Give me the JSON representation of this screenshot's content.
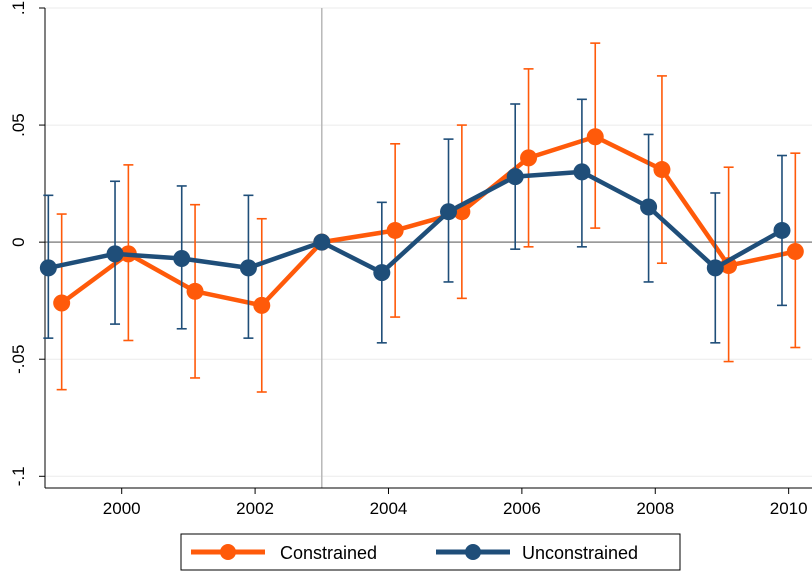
{
  "chart_data": {
    "type": "line",
    "title": "",
    "xlabel": "",
    "ylabel": "",
    "xlim": [
      1998.85,
      2010.35
    ],
    "ylim": [
      -0.105,
      0.1
    ],
    "x_ticks": [
      2000,
      2002,
      2004,
      2006,
      2008,
      2010
    ],
    "x_tick_labels": [
      "2000",
      "2002",
      "2004",
      "2006",
      "2008",
      "2010"
    ],
    "y_ticks": [
      -0.1,
      -0.05,
      0,
      0.05,
      0.1
    ],
    "y_tick_labels": [
      "-.1",
      "-.05",
      "0",
      ".05",
      ".1"
    ],
    "reference_vline": 2003,
    "reference_hline": 0,
    "grid": true,
    "legend_position": "bottom",
    "series": [
      {
        "name": "Constrained",
        "color": "#ff5a0a",
        "points": [
          {
            "x": 1999.1,
            "y": -0.026,
            "lo": -0.063,
            "hi": 0.012
          },
          {
            "x": 2000.1,
            "y": -0.005,
            "lo": -0.042,
            "hi": 0.033
          },
          {
            "x": 2001.1,
            "y": -0.021,
            "lo": -0.058,
            "hi": 0.016
          },
          {
            "x": 2002.1,
            "y": -0.027,
            "lo": -0.064,
            "hi": 0.01
          },
          {
            "x": 2003.0,
            "y": 0.0
          },
          {
            "x": 2004.1,
            "y": 0.005,
            "lo": -0.032,
            "hi": 0.042
          },
          {
            "x": 2005.1,
            "y": 0.013,
            "lo": -0.024,
            "hi": 0.05
          },
          {
            "x": 2006.1,
            "y": 0.036,
            "lo": -0.002,
            "hi": 0.074
          },
          {
            "x": 2007.1,
            "y": 0.045,
            "lo": 0.006,
            "hi": 0.085
          },
          {
            "x": 2008.1,
            "y": 0.031,
            "lo": -0.009,
            "hi": 0.071
          },
          {
            "x": 2009.1,
            "y": -0.01,
            "lo": -0.051,
            "hi": 0.032
          },
          {
            "x": 2010.1,
            "y": -0.004,
            "lo": -0.045,
            "hi": 0.038
          }
        ]
      },
      {
        "name": "Unconstrained",
        "color": "#1f4e79",
        "points": [
          {
            "x": 1998.9,
            "y": -0.011,
            "lo": -0.041,
            "hi": 0.02
          },
          {
            "x": 1999.9,
            "y": -0.005,
            "lo": -0.035,
            "hi": 0.026
          },
          {
            "x": 2000.9,
            "y": -0.007,
            "lo": -0.037,
            "hi": 0.024
          },
          {
            "x": 2001.9,
            "y": -0.011,
            "lo": -0.041,
            "hi": 0.02
          },
          {
            "x": 2003.0,
            "y": 0.0
          },
          {
            "x": 2003.9,
            "y": -0.013,
            "lo": -0.043,
            "hi": 0.017
          },
          {
            "x": 2004.9,
            "y": 0.013,
            "lo": -0.017,
            "hi": 0.044
          },
          {
            "x": 2005.9,
            "y": 0.028,
            "lo": -0.003,
            "hi": 0.059
          },
          {
            "x": 2006.9,
            "y": 0.03,
            "lo": -0.002,
            "hi": 0.061
          },
          {
            "x": 2007.9,
            "y": 0.015,
            "lo": -0.017,
            "hi": 0.046
          },
          {
            "x": 2008.9,
            "y": -0.011,
            "lo": -0.043,
            "hi": 0.021
          },
          {
            "x": 2009.9,
            "y": 0.005,
            "lo": -0.027,
            "hi": 0.037
          }
        ]
      }
    ]
  }
}
